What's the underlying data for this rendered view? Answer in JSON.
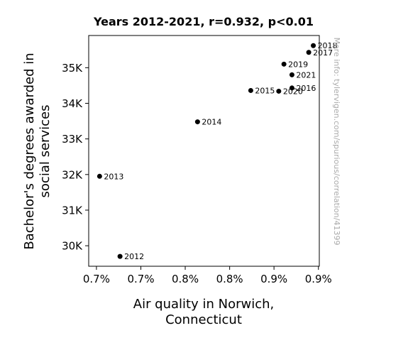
{
  "chart_data": {
    "type": "scatter",
    "title": "Years 2012-2021, r=0.932, p<0.01",
    "xlabel_lines": [
      "Air quality in Norwich,",
      "Connecticut"
    ],
    "ylabel_lines": [
      "Bachelor's degrees awarded in",
      "social services"
    ],
    "xlim": [
      0.6665,
      0.9286
    ],
    "ylim": [
      29424,
      35904
    ],
    "x_ticks": [
      {
        "value": 0.6753,
        "label": "0.7%"
      },
      {
        "value": 0.7258,
        "label": "0.7%"
      },
      {
        "value": 0.7762,
        "label": "0.8%"
      },
      {
        "value": 0.8267,
        "label": "0.8%"
      },
      {
        "value": 0.8771,
        "label": "0.9%"
      },
      {
        "value": 0.9276,
        "label": "0.9%"
      }
    ],
    "y_ticks": [
      {
        "value": 30000,
        "label": "30K"
      },
      {
        "value": 31000,
        "label": "31K"
      },
      {
        "value": 32000,
        "label": "32K"
      },
      {
        "value": 33000,
        "label": "33K"
      },
      {
        "value": 34000,
        "label": "34K"
      },
      {
        "value": 35000,
        "label": "35K"
      }
    ],
    "points": [
      {
        "label": "2012",
        "x": 0.7021,
        "y": 29700
      },
      {
        "label": "2013",
        "x": 0.6789,
        "y": 31950
      },
      {
        "label": "2014",
        "x": 0.7902,
        "y": 33480
      },
      {
        "label": "2015",
        "x": 0.8507,
        "y": 34360
      },
      {
        "label": "2016",
        "x": 0.8975,
        "y": 34430
      },
      {
        "label": "2017",
        "x": 0.9166,
        "y": 35430
      },
      {
        "label": "2018",
        "x": 0.9218,
        "y": 35620
      },
      {
        "label": "2019",
        "x": 0.8884,
        "y": 35100
      },
      {
        "label": "2020",
        "x": 0.8825,
        "y": 34340
      },
      {
        "label": "2021",
        "x": 0.8975,
        "y": 34800
      }
    ],
    "marker_color": "#000000",
    "grid": false,
    "legend": "none"
  },
  "watermark": "More info: tylervigen.com/spurious/correlation/41399"
}
